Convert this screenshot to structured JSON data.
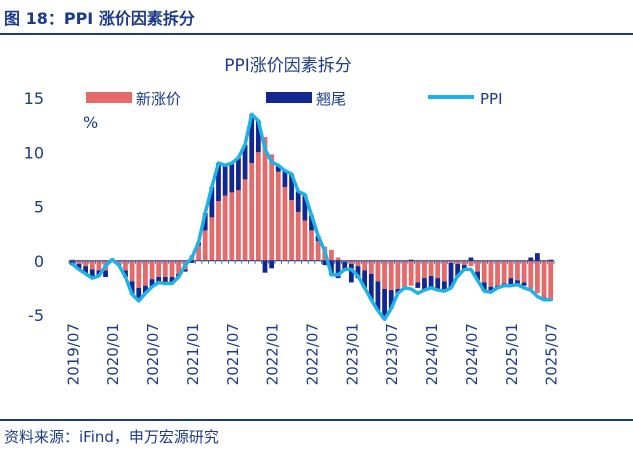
{
  "figure_title": "图 18：PPI 涨价因素拆分",
  "source": "资料来源：iFind，申万宏源研究",
  "colors": {
    "new_price": "#e56b6b",
    "carryover": "#12278f",
    "ppi": "#1fb2e6",
    "brand": "#1b3a8a"
  },
  "chart_data": {
    "type": "bar",
    "title": "PPI涨价因素拆分",
    "ylabel": "%",
    "ylim": [
      -5,
      15
    ],
    "yticks": [
      15,
      10,
      5,
      0,
      -5
    ],
    "xtick_labels": [
      "2019/07",
      "2020/01",
      "2020/07",
      "2021/01",
      "2021/07",
      "2022/01",
      "2022/07",
      "2023/01",
      "2023/07",
      "2024/01",
      "2024/07",
      "2025/01",
      "2025/07"
    ],
    "legend_position": "top",
    "categories": [
      "2019/07",
      "2019/08",
      "2019/09",
      "2019/10",
      "2019/11",
      "2019/12",
      "2020/01",
      "2020/02",
      "2020/03",
      "2020/04",
      "2020/05",
      "2020/06",
      "2020/07",
      "2020/08",
      "2020/09",
      "2020/10",
      "2020/11",
      "2020/12",
      "2021/01",
      "2021/02",
      "2021/03",
      "2021/04",
      "2021/05",
      "2021/06",
      "2021/07",
      "2021/08",
      "2021/09",
      "2021/10",
      "2021/11",
      "2021/12",
      "2022/01",
      "2022/02",
      "2022/03",
      "2022/04",
      "2022/05",
      "2022/06",
      "2022/07",
      "2022/08",
      "2022/09",
      "2022/10",
      "2022/11",
      "2022/12",
      "2023/01",
      "2023/02",
      "2023/03",
      "2023/04",
      "2023/05",
      "2023/06",
      "2023/07",
      "2023/08",
      "2023/09",
      "2023/10",
      "2023/11",
      "2023/12",
      "2024/01",
      "2024/02",
      "2024/03",
      "2024/04",
      "2024/05",
      "2024/06",
      "2024/07",
      "2024/08",
      "2024/09",
      "2024/10",
      "2024/11",
      "2024/12",
      "2025/01",
      "2025/02",
      "2025/03",
      "2025/04",
      "2025/05",
      "2025/06",
      "2025/07"
    ],
    "series": [
      {
        "name": "新涨价",
        "type": "bar",
        "values": [
          0.1,
          -0.3,
          -0.5,
          -0.8,
          -0.9,
          -0.9,
          -0.1,
          -0.3,
          -0.9,
          -1.9,
          -2.5,
          -2.3,
          -1.7,
          -1.5,
          -1.5,
          -1.5,
          -1.2,
          -0.8,
          0.5,
          1.4,
          2.8,
          4.0,
          5.5,
          6.0,
          6.3,
          6.5,
          7.5,
          9.0,
          10.0,
          11.4,
          9.8,
          8.2,
          6.8,
          5.6,
          4.5,
          3.7,
          2.8,
          1.8,
          1.3,
          1.0,
          0.3,
          -0.1,
          -0.3,
          -0.5,
          -0.9,
          -1.2,
          -1.9,
          -2.6,
          -2.7,
          -2.6,
          -2.5,
          -2.3,
          -2.0,
          -1.6,
          -1.4,
          -1.6,
          -1.9,
          -0.2,
          -0.3,
          -0.4,
          -0.5,
          -1.0,
          -2.0,
          -2.4,
          -2.3,
          -2.1,
          -1.6,
          -1.8,
          -2.0,
          -2.6,
          -3.0,
          -3.4,
          -3.7
        ]
      },
      {
        "name": "翘尾",
        "type": "bar",
        "values": [
          -0.4,
          -0.5,
          -0.7,
          -0.8,
          -0.5,
          -0.6,
          0.2,
          -0.1,
          -0.6,
          -1.2,
          -1.2,
          -0.7,
          -0.7,
          -0.5,
          -0.6,
          -0.6,
          -0.3,
          -0.2,
          -0.2,
          0.3,
          1.6,
          2.8,
          3.5,
          2.8,
          2.7,
          3.0,
          3.2,
          4.5,
          2.9,
          -1.1,
          -0.7,
          0.6,
          1.5,
          2.4,
          1.9,
          2.4,
          1.4,
          0.5,
          -0.4,
          -1.3,
          -1.6,
          -0.7,
          -1.7,
          -1.1,
          -1.6,
          -2.4,
          -2.7,
          -2.8,
          -1.7,
          -0.4,
          0.0,
          0.1,
          -0.5,
          -1.1,
          -1.1,
          -1.1,
          -0.9,
          -2.3,
          -1.2,
          -0.4,
          0.3,
          -0.8,
          -0.8,
          -0.5,
          -0.2,
          -0.2,
          -0.7,
          -0.4,
          -0.3,
          0.3,
          0.7,
          -0.2,
          0.1
        ]
      },
      {
        "name": "PPI",
        "type": "line",
        "values": [
          -0.3,
          -0.8,
          -1.2,
          -1.6,
          -1.4,
          -0.5,
          0.1,
          -0.4,
          -1.5,
          -3.1,
          -3.7,
          -3.0,
          -2.4,
          -2.0,
          -2.1,
          -2.1,
          -1.5,
          -0.4,
          0.3,
          1.7,
          4.4,
          6.8,
          9.0,
          8.8,
          9.0,
          9.5,
          10.7,
          13.5,
          12.9,
          10.3,
          9.1,
          8.8,
          8.3,
          8.0,
          6.4,
          6.1,
          4.2,
          2.3,
          0.9,
          -1.3,
          -1.3,
          -0.8,
          -0.8,
          -1.4,
          -2.5,
          -3.6,
          -4.6,
          -5.4,
          -4.4,
          -3.0,
          -2.5,
          -2.6,
          -3.0,
          -2.7,
          -2.5,
          -2.7,
          -2.8,
          -2.5,
          -1.4,
          -0.8,
          -0.8,
          -1.8,
          -2.8,
          -2.9,
          -2.5,
          -2.3,
          -2.3,
          -2.2,
          -2.5,
          -2.7,
          -3.3,
          -3.6,
          -3.6
        ]
      }
    ]
  }
}
